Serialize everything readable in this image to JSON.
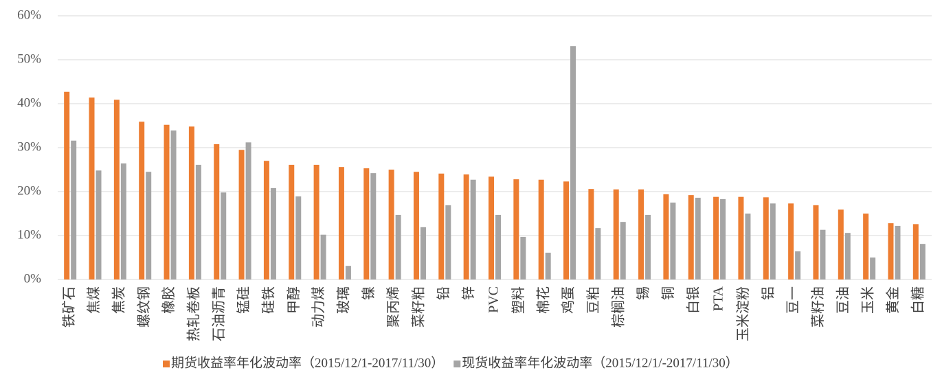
{
  "chart_data": {
    "type": "bar",
    "categories": [
      "铁矿石",
      "焦煤",
      "焦炭",
      "螺纹钢",
      "橡胶",
      "热轧卷板",
      "石油沥青",
      "锰硅",
      "硅铁",
      "甲醇",
      "动力煤",
      "玻璃",
      "镍",
      "聚丙烯",
      "菜籽粕",
      "铅",
      "锌",
      "PVC",
      "塑料",
      "棉花",
      "鸡蛋",
      "豆粕",
      "棕榈油",
      "锡",
      "铜",
      "白银",
      "PTA",
      "玉米淀粉",
      "铝",
      "豆一",
      "菜籽油",
      "豆油",
      "玉米",
      "黄金",
      "白糖"
    ],
    "series": [
      {
        "name": "期货收益率年化波动率（2015/12/1-2017/11/30）",
        "color": "#ed7d31",
        "values": [
          42.7,
          41.4,
          40.9,
          35.9,
          35.2,
          34.8,
          30.8,
          29.5,
          27.0,
          26.1,
          26.1,
          25.6,
          25.3,
          25.0,
          24.5,
          24.1,
          23.9,
          23.4,
          22.8,
          22.7,
          22.3,
          20.6,
          20.5,
          20.5,
          19.4,
          19.2,
          18.8,
          18.8,
          18.7,
          17.3,
          16.9,
          15.9,
          15.0,
          12.8,
          12.6
        ]
      },
      {
        "name": "现货收益率年化波动率（2015/12/1/-2017/11/30）",
        "color": "#a5a5a5",
        "values": [
          31.6,
          24.8,
          26.4,
          24.5,
          33.9,
          26.1,
          19.8,
          31.2,
          20.8,
          18.9,
          10.2,
          3.1,
          24.2,
          14.7,
          11.9,
          16.9,
          22.7,
          14.7,
          9.7,
          6.1,
          53.1,
          11.7,
          13.1,
          14.7,
          17.5,
          18.6,
          18.3,
          15.0,
          17.3,
          6.4,
          11.3,
          10.6,
          5.0,
          12.2,
          8.1
        ]
      }
    ],
    "ylim": [
      0,
      60
    ],
    "yticks": [
      {
        "value": 0,
        "label": "0%"
      },
      {
        "value": 10,
        "label": "10%"
      },
      {
        "value": 20,
        "label": "20%"
      },
      {
        "value": 30,
        "label": "30%"
      },
      {
        "value": 40,
        "label": "40%"
      },
      {
        "value": 50,
        "label": "50%"
      },
      {
        "value": 60,
        "label": "60%"
      }
    ],
    "grid": true
  }
}
